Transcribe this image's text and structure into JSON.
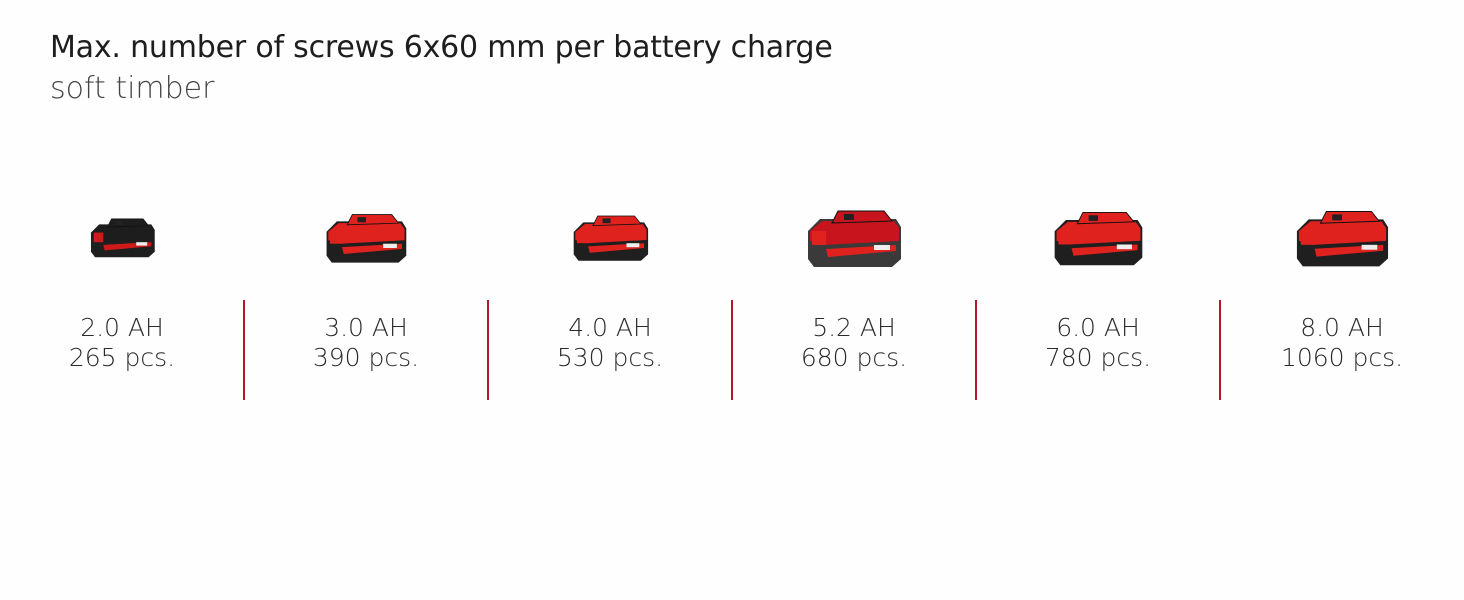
{
  "header": {
    "title": "Max. number of screws 6x60 mm per battery charge",
    "subtitle": "soft timber"
  },
  "colors": {
    "accent": "#b0172b",
    "battery_red": "#d81e1e",
    "battery_black": "#222222"
  },
  "batteries": [
    {
      "capacity": "2.0 AH",
      "screws": "265 pcs.",
      "icon": "battery-pack-icon",
      "style": "black-top"
    },
    {
      "capacity": "3.0 AH",
      "screws": "390 pcs.",
      "icon": "battery-pack-icon",
      "style": "red-top"
    },
    {
      "capacity": "4.0 AH",
      "screws": "530 pcs.",
      "icon": "battery-pack-icon",
      "style": "red-top"
    },
    {
      "capacity": "5.2 AH",
      "screws": "680 pcs.",
      "icon": "battery-pack-icon",
      "style": "grey-body"
    },
    {
      "capacity": "6.0 AH",
      "screws": "780 pcs.",
      "icon": "battery-pack-icon",
      "style": "red-top"
    },
    {
      "capacity": "8.0 AH",
      "screws": "1060 pcs.",
      "icon": "battery-pack-icon",
      "style": "red-top"
    }
  ]
}
